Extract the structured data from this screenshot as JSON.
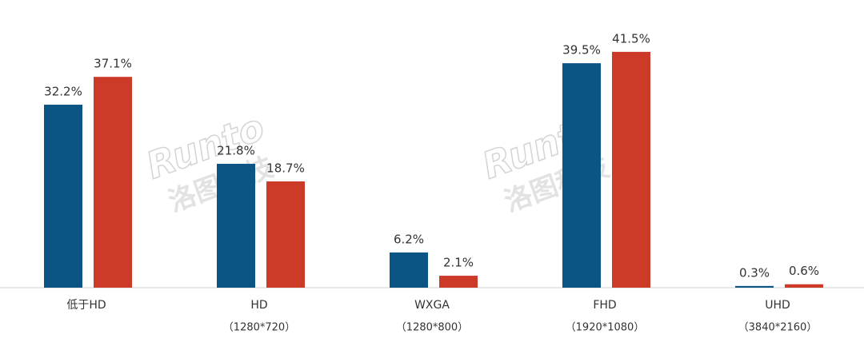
{
  "chart_data": {
    "type": "bar",
    "categories": [
      "低于HD",
      "HD",
      "WXGA",
      "FHD",
      "UHD"
    ],
    "category_notes": [
      null,
      "（1280*720）",
      "（1280*800）",
      "（1920*1080）",
      "（3840*2160）"
    ],
    "series": [
      {
        "color": "#0b5585",
        "values": [
          32.2,
          21.8,
          6.2,
          39.5,
          0.3
        ],
        "value_labels": [
          "32.2%",
          "21.8%",
          "6.2%",
          "39.5%",
          "0.3%"
        ]
      },
      {
        "color": "#cc3a28",
        "values": [
          37.1,
          18.7,
          2.1,
          41.5,
          0.6
        ],
        "value_labels": [
          "37.1%",
          "18.7%",
          "2.1%",
          "41.5%",
          "0.6%"
        ]
      }
    ],
    "ylim": [
      0,
      45
    ],
    "watermark": "Runto",
    "watermark_cn": "洛图科技"
  }
}
